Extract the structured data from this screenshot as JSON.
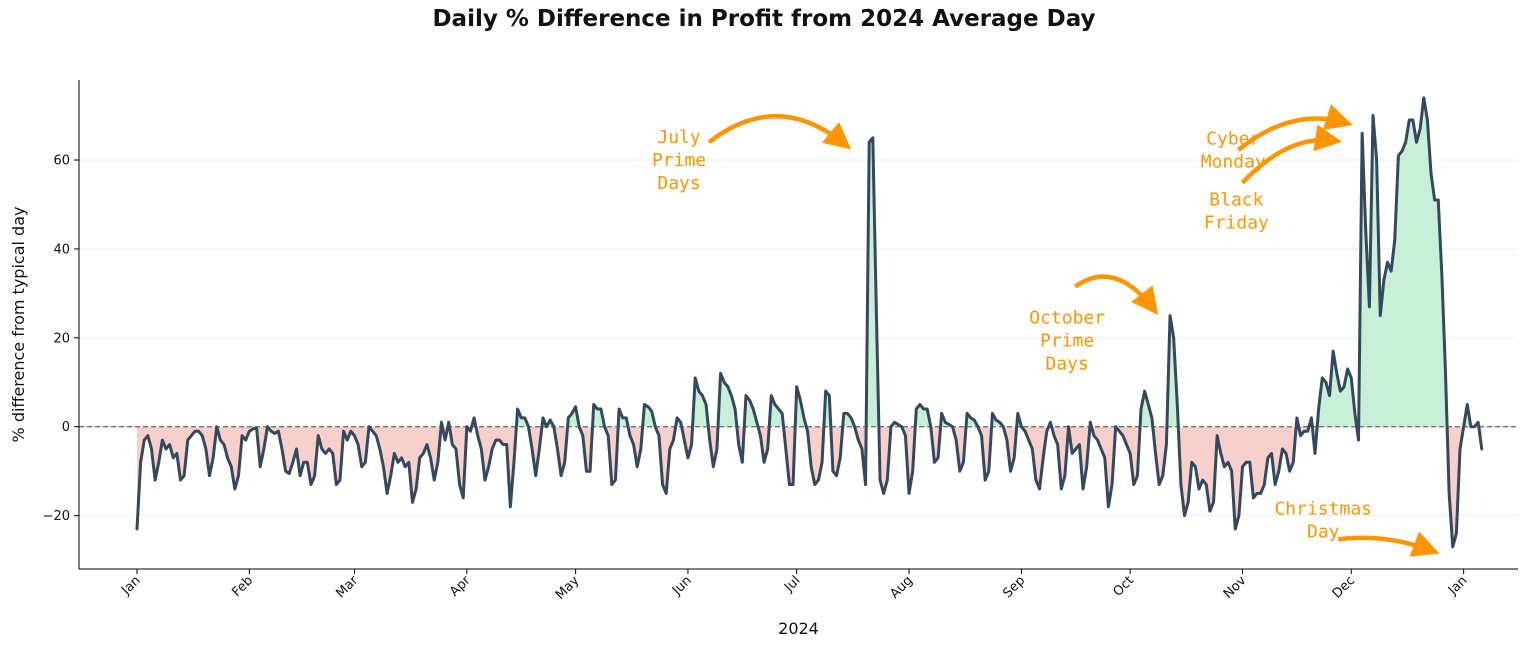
{
  "chart_data": {
    "type": "area",
    "title": "Daily % Difference in Profit from 2024 Average Day",
    "xlabel": "2024",
    "ylabel": "% difference from typical day",
    "xlim": [
      "2023-12-16",
      "2025-01-16"
    ],
    "ylim": [
      -32,
      78
    ],
    "yticks": [
      -20,
      0,
      20,
      40,
      60
    ],
    "ytick_labels": [
      "−20",
      "0",
      "20",
      "40",
      "60"
    ],
    "xticks": [
      "2024-01-01",
      "2024-02-01",
      "2024-03-01",
      "2024-04-01",
      "2024-05-01",
      "2024-06-01",
      "2024-07-01",
      "2024-08-01",
      "2024-09-01",
      "2024-10-01",
      "2024-11-01",
      "2024-12-01",
      "2025-01-01"
    ],
    "xtick_labels": [
      "Jan",
      "Feb",
      "Mar",
      "Apr",
      "May",
      "Jun",
      "Jul",
      "Aug",
      "Sep",
      "Oct",
      "Nov",
      "Dec",
      "Jan"
    ],
    "grid": "horizontal dotted",
    "reference_line": 0,
    "colors": {
      "line": "#34495e",
      "positive_fill": "#c8f0d8",
      "negative_fill": "#f7d0cc",
      "annotation": "#ff9500",
      "zero_line": "#666666"
    },
    "series": [
      {
        "x_start": "2024-01-01",
        "x_step_days": 1,
        "values": [
          -23,
          -8,
          -3,
          -2,
          -5,
          -12,
          -8,
          -3,
          -5,
          -4,
          -7,
          -6,
          -12,
          -11,
          -3,
          -2,
          -1,
          -1,
          -2,
          -5,
          -11,
          -7,
          0,
          -3,
          -4,
          -7,
          -9,
          -14,
          -11,
          -2,
          -3,
          -1,
          -0.5,
          -0.3,
          -9,
          -5,
          0,
          -1,
          -1.5,
          -1,
          -5,
          -10,
          -10.5,
          -8,
          -5,
          -11,
          -8,
          -8,
          -13,
          -11,
          -2,
          -5,
          -6,
          -5,
          -6,
          -13,
          -12,
          -1,
          -3,
          -1,
          -2,
          -4,
          -9,
          -8,
          0,
          -1,
          -2,
          -5,
          -9,
          -15,
          -11,
          -6,
          -8,
          -7,
          -9,
          -8,
          -17,
          -14,
          -7,
          -6,
          -4,
          -7,
          -12,
          -8,
          1,
          -3,
          1,
          -4,
          -5,
          -13,
          -16,
          0,
          -1,
          2,
          -2,
          -5,
          -12,
          -9,
          -5,
          -3,
          -3,
          -4,
          -4,
          -18,
          -8,
          4,
          2,
          2,
          0,
          -5,
          -11,
          -5,
          2,
          0,
          1.5,
          0,
          -5,
          -11,
          -8,
          2,
          3,
          4.5,
          0,
          -2,
          -10,
          -10,
          5,
          4,
          4,
          0,
          -2,
          -13,
          -12,
          4,
          2,
          2,
          -2,
          -4,
          -9,
          -5,
          5,
          4.5,
          3.5,
          0,
          -2,
          -13,
          -15,
          -5,
          -3,
          2,
          1,
          -3,
          -7,
          -4,
          11,
          8,
          7,
          5,
          -3,
          -9,
          -5,
          12,
          10,
          9,
          7,
          4,
          -4,
          -8,
          7,
          6,
          4,
          1,
          -2,
          -8,
          -5,
          7,
          5,
          4,
          3,
          -5,
          -13,
          -13,
          9,
          6,
          2,
          -1,
          -9,
          -13,
          -12,
          -8,
          8,
          7,
          -10,
          -11,
          -7,
          3,
          3,
          2,
          0,
          -3,
          -5,
          -13,
          64,
          65,
          25,
          -12,
          -15,
          -12,
          0,
          1,
          0.5,
          0,
          -2,
          -15,
          -10,
          4,
          5,
          4,
          4,
          0,
          -8,
          -7,
          3,
          1,
          0.5,
          0,
          -3,
          -10,
          -8,
          3,
          2,
          1.5,
          0,
          -2,
          -12,
          -10,
          3,
          1.5,
          1,
          0,
          -3,
          -10,
          -7,
          3,
          0,
          -1,
          -3,
          -5,
          -12,
          -14,
          -7,
          -1,
          1,
          -2,
          -4,
          -14,
          -11,
          0,
          -6,
          -5,
          -4,
          -14,
          -9,
          1,
          -2,
          -3,
          -5,
          -7,
          -18,
          -13,
          0,
          -1,
          -2,
          -4,
          -6,
          -13,
          -11,
          4,
          8,
          5,
          2,
          -6,
          -13,
          -11,
          -4,
          25,
          20,
          5,
          -13,
          -20,
          -17,
          -8,
          -9,
          -14,
          -12,
          -13,
          -19,
          -17,
          -2,
          -6,
          -9,
          -8,
          -10,
          -23,
          -20,
          -9,
          -8,
          -8,
          -16,
          -15,
          -15,
          -13,
          -7,
          -6,
          -13,
          -10,
          -5,
          -6,
          -10,
          -8,
          2,
          -2,
          -1,
          -1,
          2,
          -6,
          4,
          11,
          10,
          7,
          17,
          12,
          8,
          9,
          13,
          11,
          3,
          -3,
          66,
          44,
          27,
          70,
          60,
          25,
          33,
          37,
          35,
          42,
          61,
          62,
          64,
          69,
          69,
          64,
          67,
          74,
          69,
          57,
          51,
          51,
          34,
          12,
          -15,
          -27,
          -24,
          -5,
          0,
          5,
          0,
          0,
          1,
          -5
        ]
      }
    ],
    "annotations": [
      {
        "lines": [
          "July",
          "Prime",
          "Days"
        ],
        "arrow_to": [
          "2024-07-16",
          64
        ]
      },
      {
        "lines": [
          "October",
          "Prime",
          "Days"
        ],
        "arrow_to": [
          "2024-10-09",
          27
        ]
      },
      {
        "lines": [
          "Cyber",
          "Monday"
        ],
        "arrow_to": [
          "2024-12-01",
          69
        ]
      },
      {
        "lines": [
          "Black",
          "Friday"
        ],
        "arrow_to": [
          "2024-11-28",
          65
        ]
      },
      {
        "lines": [
          "Christmas",
          "Day"
        ],
        "arrow_to": [
          "2024-12-25",
          -28
        ]
      }
    ]
  }
}
